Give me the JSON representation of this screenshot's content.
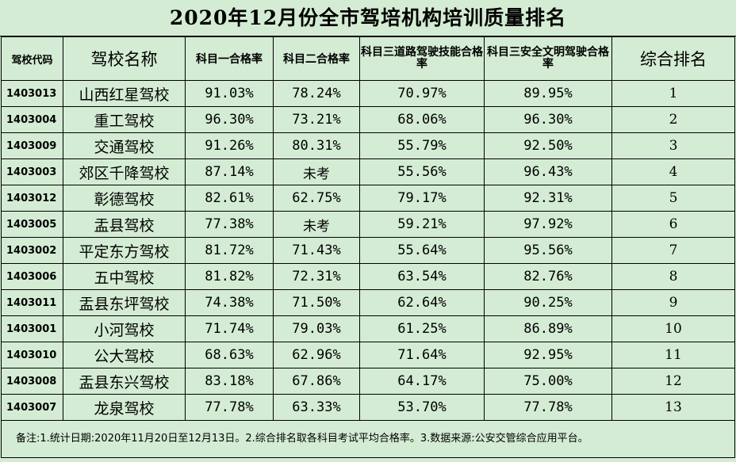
{
  "title": "2020年12月份全市驾培机构培训质量排名",
  "headers": {
    "code": "驾校代码",
    "name": "驾校名称",
    "s1": "科目一合格率",
    "s2": "科目二合格率",
    "s3_road": "科目三道路驾驶技能合格率",
    "s3_safe": "科目三安全文明驾驶合格率",
    "rank": "综合排名"
  },
  "rows": [
    {
      "code": "1403013",
      "name": "山西红星驾校",
      "s1": "91.03%",
      "s2": "78.24%",
      "s3_road": "70.97%",
      "s3_safe": "89.95%",
      "rank": "1"
    },
    {
      "code": "1403004",
      "name": "重工驾校",
      "s1": "96.30%",
      "s2": "73.21%",
      "s3_road": "68.06%",
      "s3_safe": "96.30%",
      "rank": "2"
    },
    {
      "code": "1403009",
      "name": "交通驾校",
      "s1": "91.26%",
      "s2": "80.31%",
      "s3_road": "55.79%",
      "s3_safe": "92.50%",
      "rank": "3"
    },
    {
      "code": "1403003",
      "name": "郊区千降驾校",
      "s1": "87.14%",
      "s2": "未考",
      "s3_road": "55.56%",
      "s3_safe": "96.43%",
      "rank": "4"
    },
    {
      "code": "1403012",
      "name": "彰德驾校",
      "s1": "82.61%",
      "s2": "62.75%",
      "s3_road": "79.17%",
      "s3_safe": "92.31%",
      "rank": "5"
    },
    {
      "code": "1403005",
      "name": "盂县驾校",
      "s1": "77.38%",
      "s2": "未考",
      "s3_road": "59.21%",
      "s3_safe": "97.92%",
      "rank": "6"
    },
    {
      "code": "1403002",
      "name": "平定东方驾校",
      "s1": "81.72%",
      "s2": "71.43%",
      "s3_road": "55.64%",
      "s3_safe": "95.56%",
      "rank": "7"
    },
    {
      "code": "1403006",
      "name": "五中驾校",
      "s1": "81.82%",
      "s2": "72.31%",
      "s3_road": "63.54%",
      "s3_safe": "82.76%",
      "rank": "8"
    },
    {
      "code": "1403011",
      "name": "盂县东坪驾校",
      "s1": "74.38%",
      "s2": "71.50%",
      "s3_road": "62.64%",
      "s3_safe": "90.25%",
      "rank": "9"
    },
    {
      "code": "1403001",
      "name": "小河驾校",
      "s1": "71.74%",
      "s2": "79.03%",
      "s3_road": "61.25%",
      "s3_safe": "86.89%",
      "rank": "10"
    },
    {
      "code": "1403010",
      "name": "公大驾校",
      "s1": "68.63%",
      "s2": "62.96%",
      "s3_road": "71.64%",
      "s3_safe": "92.95%",
      "rank": "11"
    },
    {
      "code": "1403008",
      "name": "盂县东兴驾校",
      "s1": "83.18%",
      "s2": "67.86%",
      "s3_road": "64.17%",
      "s3_safe": "75.00%",
      "rank": "12"
    },
    {
      "code": "1403007",
      "name": "龙泉驾校",
      "s1": "77.78%",
      "s2": "63.33%",
      "s3_road": "53.70%",
      "s3_safe": "77.78%",
      "rank": "13"
    }
  ],
  "note": "备注:1.统计日期:2020年11月20日至12月13日。2.综合排名取各科目考试平均合格率。3.数据来源:公安交管综合应用平台。",
  "colors": {
    "background": "#d4ecd4",
    "grid": "#000000"
  }
}
